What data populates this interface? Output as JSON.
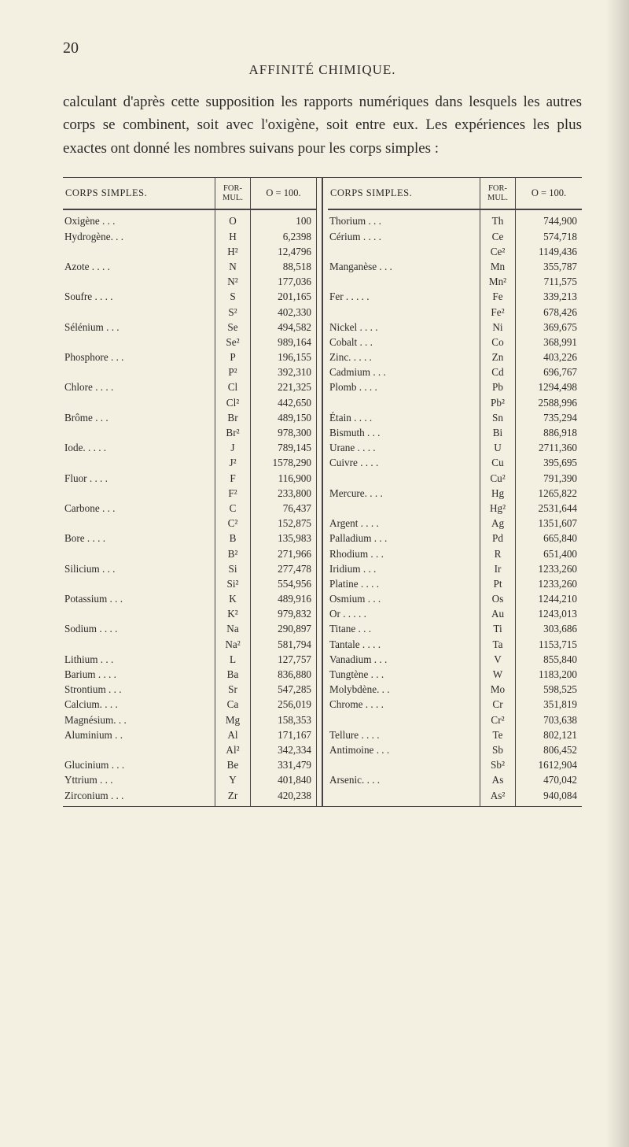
{
  "pageNumber": "20",
  "runningHead": "AFFINITÉ CHIMIQUE.",
  "paragraph": "calculant d'après cette supposition les rapports numé­riques dans lesquels les autres corps se combinent, soit avec l'oxigène, soit entre eux. Les expériences les plus exactes ont donné les nombres suivans pour les corps simples :",
  "headers": {
    "corps": "CORPS SIMPLES.",
    "formul": "FOR­MUL.",
    "o100": "O = 100."
  },
  "left": [
    {
      "n": "Oxigène .  .  .",
      "s": "O",
      "v": "100"
    },
    {
      "n": "Hydrogène.  .  .",
      "s": "H",
      "v": "6,2398"
    },
    {
      "n": "",
      "s": "H²",
      "v": "12,4796"
    },
    {
      "n": "Azote .  .  .  .",
      "s": "N",
      "v": "88,518"
    },
    {
      "n": "",
      "s": "N²",
      "v": "177,036"
    },
    {
      "n": "Soufre .  .  .  .",
      "s": "S",
      "v": "201,165"
    },
    {
      "n": "",
      "s": "S²",
      "v": "402,330"
    },
    {
      "n": "Sélénium .  .  .",
      "s": "Se",
      "v": "494,582"
    },
    {
      "n": "",
      "s": "Se²",
      "v": "989,164"
    },
    {
      "n": "Phosphore .  .  .",
      "s": "P",
      "v": "196,155"
    },
    {
      "n": "",
      "s": "P²",
      "v": "392,310"
    },
    {
      "n": "Chlore .  .  .  .",
      "s": "Cl",
      "v": "221,325"
    },
    {
      "n": "",
      "s": "Cl²",
      "v": "442,650"
    },
    {
      "n": "Brôme  .  .  .",
      "s": "Br",
      "v": "489,150"
    },
    {
      "n": "",
      "s": "Br²",
      "v": "978,300"
    },
    {
      "n": "Iode.  .  .  .  .",
      "s": "J",
      "v": "789,145"
    },
    {
      "n": "",
      "s": "J²",
      "v": "1578,290"
    },
    {
      "n": "Fluor .  .  .  .",
      "s": "F",
      "v": "116,900"
    },
    {
      "n": "",
      "s": "F²",
      "v": "233,800"
    },
    {
      "n": "Carbone  .  .  .",
      "s": "C",
      "v": "76,437"
    },
    {
      "n": "",
      "s": "C²",
      "v": "152,875"
    },
    {
      "n": "Bore  .  .  .  .",
      "s": "B",
      "v": "135,983"
    },
    {
      "n": "",
      "s": "B²",
      "v": "271,966"
    },
    {
      "n": "Silicium .  .  .",
      "s": "Si",
      "v": "277,478"
    },
    {
      "n": "",
      "s": "Si²",
      "v": "554,956"
    },
    {
      "n": "Potassium .  .  .",
      "s": "K",
      "v": "489,916"
    },
    {
      "n": "",
      "s": "K²",
      "v": "979,832"
    },
    {
      "n": "Sodium .  .  .  .",
      "s": "Na",
      "v": "290,897"
    },
    {
      "n": "",
      "s": "Na²",
      "v": "581,794"
    },
    {
      "n": "Lithium  .  .  .",
      "s": "L",
      "v": "127,757"
    },
    {
      "n": "Barium .  .  .  .",
      "s": "Ba",
      "v": "836,880"
    },
    {
      "n": "Strontium .  .  .",
      "s": "Sr",
      "v": "547,285"
    },
    {
      "n": "Calcium.  .  .  .",
      "s": "Ca",
      "v": "256,019"
    },
    {
      "n": "Magnésium.  .  .",
      "s": "Mg",
      "v": "158,353"
    },
    {
      "n": "Aluminium  .  .",
      "s": "Al",
      "v": "171,167"
    },
    {
      "n": "",
      "s": "Al²",
      "v": "342,334"
    },
    {
      "n": "Glucinium .  .  .",
      "s": "Be",
      "v": "331,479"
    },
    {
      "n": "Yttrium  .  .  .",
      "s": "Y",
      "v": "401,840"
    },
    {
      "n": "Zirconium .  .  .",
      "s": "Zr",
      "v": "420,238"
    }
  ],
  "right": [
    {
      "n": "Thorium  .  .  .",
      "s": "Th",
      "v": "744,900"
    },
    {
      "n": "Cérium .  .  .  .",
      "s": "Ce",
      "v": "574,718"
    },
    {
      "n": "",
      "s": "Ce²",
      "v": "1149,436"
    },
    {
      "n": "Manganèse .  .  .",
      "s": "Mn",
      "v": "355,787"
    },
    {
      "n": "",
      "s": "Mn²",
      "v": "711,575"
    },
    {
      "n": "Fer .  .  .  .  .",
      "s": "Fe",
      "v": "339,213"
    },
    {
      "n": "",
      "s": "Fe²",
      "v": "678,426"
    },
    {
      "n": "Nickel .  .  .  .",
      "s": "Ni",
      "v": "369,675"
    },
    {
      "n": "Cobalt  .  .  .",
      "s": "Co",
      "v": "368,991"
    },
    {
      "n": "Zinc.  .  .  .  .",
      "s": "Zn",
      "v": "403,226"
    },
    {
      "n": "Cadmium  .  .  .",
      "s": "Cd",
      "v": "696,767"
    },
    {
      "n": "Plomb .  .  .  .",
      "s": "Pb",
      "v": "1294,498"
    },
    {
      "n": "",
      "s": "Pb²",
      "v": "2588,996"
    },
    {
      "n": "Étain  .  .  .  .",
      "s": "Sn",
      "v": "735,294"
    },
    {
      "n": "Bismuth  .  .  .",
      "s": "Bi",
      "v": "886,918"
    },
    {
      "n": "Urane .  .  .  .",
      "s": "U",
      "v": "2711,360"
    },
    {
      "n": "Cuivre .  .  .  .",
      "s": "Cu",
      "v": "395,695"
    },
    {
      "n": "",
      "s": "Cu²",
      "v": "791,390"
    },
    {
      "n": "Mercure.  .  .  .",
      "s": "Hg",
      "v": "1265,822"
    },
    {
      "n": "",
      "s": "Hg²",
      "v": "2531,644"
    },
    {
      "n": "Argent .  .  .  .",
      "s": "Ag",
      "v": "1351,607"
    },
    {
      "n": "Palladium .  .  .",
      "s": "Pd",
      "v": "665,840"
    },
    {
      "n": "Rhodium  .  .  .",
      "s": "R",
      "v": "651,400"
    },
    {
      "n": "Iridium  .  .  .",
      "s": "Ir",
      "v": "1233,260"
    },
    {
      "n": "Platine .  .  .  .",
      "s": "Pt",
      "v": "1233,260"
    },
    {
      "n": "Osmium  .  .  .",
      "s": "Os",
      "v": "1244,210"
    },
    {
      "n": "Or .  .  .  .  .",
      "s": "Au",
      "v": "1243,013"
    },
    {
      "n": "Titane  .  .  .",
      "s": "Ti",
      "v": "303,686"
    },
    {
      "n": "Tantale .  .  .  .",
      "s": "Ta",
      "v": "1153,715"
    },
    {
      "n": "Vanadium .  .  .",
      "s": "V",
      "v": "855,840"
    },
    {
      "n": "Tungtène  .  .  .",
      "s": "W",
      "v": "1183,200"
    },
    {
      "n": "Molybdène.  .  .",
      "s": "Mo",
      "v": "598,525"
    },
    {
      "n": "Chrome .  .  .  .",
      "s": "Cr",
      "v": "351,819"
    },
    {
      "n": "",
      "s": "Cr²",
      "v": "703,638"
    },
    {
      "n": "Tellure .  .  .  .",
      "s": "Te",
      "v": "802,121"
    },
    {
      "n": "Antimoine .  .  .",
      "s": "Sb",
      "v": "806,452"
    },
    {
      "n": "",
      "s": "Sb²",
      "v": "1612,904"
    },
    {
      "n": "Arsenic.  .  .  .",
      "s": "As",
      "v": "470,042"
    },
    {
      "n": "",
      "s": "As²",
      "v": "940,084"
    }
  ]
}
